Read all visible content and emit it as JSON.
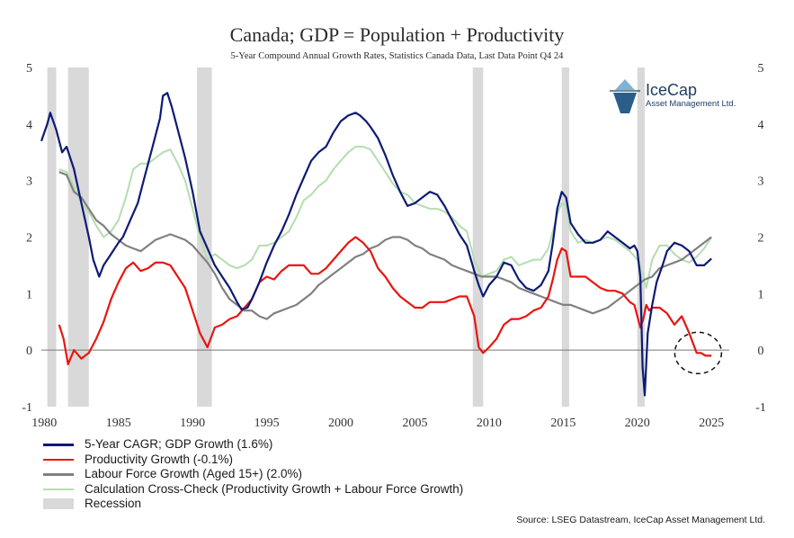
{
  "title": "Canada; GDP = Population + Productivity",
  "subtitle": "5-Year Compound Annual Growth Rates, Statistics Canada Data, Last Data Point Q4 24",
  "source": "Source: LSEG Datastream, IceCap Asset Management Ltd.",
  "logo": {
    "name": "IceCap",
    "tagline": "Asset Management Ltd."
  },
  "colors": {
    "gdp": "#0d1a75",
    "productivity": "#e8150f",
    "labour": "#808080",
    "crosscheck": "#b4ddb0",
    "recession": "#d9d9d9"
  },
  "chart_data": {
    "type": "line",
    "title": "Canada; GDP = Population + Productivity",
    "subtitle": "5-Year Compound Annual Growth Rates, Statistics Canada Data, Last Data Point Q4 24",
    "xlim": [
      1979.8,
      2026.2
    ],
    "ylim": [
      -1,
      5
    ],
    "x_ticks": [
      "1980",
      "1985",
      "1990",
      "1995",
      "2000",
      "2005",
      "2010",
      "2015",
      "2020",
      "2025"
    ],
    "y_ticks": [
      "-1",
      "0",
      "1",
      "2",
      "3",
      "4",
      "5"
    ],
    "grid": false,
    "secondary_y_axis": true,
    "legend": [
      {
        "key": "gdp",
        "label": "5-Year CAGR; GDP Growth (1.6%)",
        "style": "line"
      },
      {
        "key": "productivity",
        "label": "Productivity Growth (-0.1%)",
        "style": "line"
      },
      {
        "key": "labour",
        "label": "Labour Force Growth (Aged 15+) (2.0%)",
        "style": "line"
      },
      {
        "key": "crosscheck",
        "label": "Calculation Cross-Check (Productivity Growth + Labour Force Growth)",
        "style": "line"
      },
      {
        "key": "recession",
        "label": "Recession",
        "style": "box"
      }
    ],
    "legend_position": "bottom-left",
    "recessions": [
      [
        1980.2,
        1980.8
      ],
      [
        1981.6,
        1983.0
      ],
      [
        1990.3,
        1991.3
      ],
      [
        2008.9,
        2009.6
      ],
      [
        2014.9,
        2015.4
      ],
      [
        2020.0,
        2020.5
      ]
    ],
    "annotation": "dashed-circle around latest productivity values",
    "series": [
      {
        "key": "gdp",
        "name": "5-Year CAGR; GDP Growth (1.6%)",
        "x": [
          1979.8,
          1980.2,
          1980.4,
          1980.8,
          1981.2,
          1981.5,
          1982.0,
          1982.5,
          1983.0,
          1983.3,
          1983.7,
          1984.0,
          1984.5,
          1985.0,
          1985.3,
          1985.8,
          1986.3,
          1986.8,
          1987.3,
          1987.8,
          1988.0,
          1988.3,
          1988.6,
          1989.0,
          1989.5,
          1990.0,
          1990.5,
          1991.0,
          1991.5,
          1992.0,
          1992.5,
          1993.0,
          1993.3,
          1993.7,
          1994.0,
          1994.5,
          1995.0,
          1995.5,
          1996.0,
          1996.5,
          1997.0,
          1997.5,
          1998.0,
          1998.5,
          1999.0,
          1999.5,
          2000.0,
          2000.5,
          2001.0,
          2001.3,
          2001.7,
          2002.0,
          2002.5,
          2003.0,
          2003.5,
          2004.0,
          2004.5,
          2005.0,
          2005.5,
          2006.0,
          2006.5,
          2007.0,
          2007.5,
          2008.0,
          2008.5,
          2009.0,
          2009.3,
          2009.6,
          2010.0,
          2010.5,
          2011.0,
          2011.5,
          2012.0,
          2012.5,
          2013.0,
          2013.5,
          2014.0,
          2014.3,
          2014.6,
          2014.9,
          2015.2,
          2015.5,
          2016.0,
          2016.5,
          2017.0,
          2017.5,
          2018.0,
          2018.5,
          2019.0,
          2019.5,
          2019.8,
          2020.0,
          2020.2,
          2020.35,
          2020.5,
          2020.7,
          2021.0,
          2021.3,
          2021.7,
          2022.0,
          2022.5,
          2023.0,
          2023.5,
          2024.0,
          2024.5,
          2025.0
        ],
        "y": [
          3.7,
          4.0,
          4.2,
          3.9,
          3.5,
          3.6,
          3.2,
          2.6,
          2.0,
          1.6,
          1.3,
          1.5,
          1.7,
          1.9,
          2.0,
          2.3,
          2.6,
          3.1,
          3.6,
          4.1,
          4.5,
          4.55,
          4.3,
          3.9,
          3.4,
          2.8,
          2.1,
          1.8,
          1.5,
          1.3,
          1.1,
          0.85,
          0.72,
          0.75,
          0.9,
          1.2,
          1.55,
          1.85,
          2.1,
          2.4,
          2.75,
          3.05,
          3.35,
          3.5,
          3.6,
          3.85,
          4.05,
          4.15,
          4.2,
          4.15,
          4.05,
          3.95,
          3.75,
          3.45,
          3.1,
          2.8,
          2.55,
          2.6,
          2.7,
          2.8,
          2.75,
          2.55,
          2.3,
          2.05,
          1.85,
          1.4,
          1.15,
          0.95,
          1.15,
          1.3,
          1.55,
          1.5,
          1.25,
          1.1,
          1.05,
          1.15,
          1.4,
          1.9,
          2.5,
          2.8,
          2.7,
          2.25,
          2.05,
          1.9,
          1.9,
          1.95,
          2.1,
          2.0,
          1.9,
          1.8,
          1.85,
          1.75,
          1.3,
          -0.3,
          -0.8,
          0.3,
          0.8,
          1.2,
          1.5,
          1.75,
          1.9,
          1.85,
          1.75,
          1.5,
          1.5,
          1.62
        ]
      },
      {
        "key": "productivity",
        "name": "Productivity Growth (-0.1%)",
        "x": [
          1981.0,
          1981.3,
          1981.6,
          1982.0,
          1982.5,
          1983.0,
          1983.5,
          1984.0,
          1984.5,
          1985.0,
          1985.5,
          1986.0,
          1986.5,
          1987.0,
          1987.5,
          1988.0,
          1988.5,
          1989.0,
          1989.5,
          1990.0,
          1990.5,
          1991.0,
          1991.5,
          1992.0,
          1992.5,
          1993.0,
          1993.5,
          1994.0,
          1994.5,
          1995.0,
          1995.5,
          1996.0,
          1996.5,
          1997.0,
          1997.5,
          1998.0,
          1998.5,
          1999.0,
          1999.5,
          2000.0,
          2000.5,
          2001.0,
          2001.5,
          2002.0,
          2002.5,
          2003.0,
          2003.5,
          2004.0,
          2004.5,
          2005.0,
          2005.5,
          2006.0,
          2006.5,
          2007.0,
          2007.5,
          2008.0,
          2008.5,
          2009.0,
          2009.3,
          2009.6,
          2010.0,
          2010.5,
          2011.0,
          2011.5,
          2012.0,
          2012.5,
          2013.0,
          2013.5,
          2014.0,
          2014.3,
          2014.6,
          2014.9,
          2015.2,
          2015.5,
          2016.0,
          2016.5,
          2017.0,
          2017.5,
          2018.0,
          2018.5,
          2019.0,
          2019.5,
          2019.8,
          2020.0,
          2020.2,
          2020.4,
          2020.6,
          2020.8,
          2021.0,
          2021.5,
          2022.0,
          2022.5,
          2023.0,
          2023.5,
          2024.0,
          2024.3,
          2024.6,
          2025.0
        ],
        "y": [
          0.45,
          0.2,
          -0.25,
          0.0,
          -0.15,
          -0.05,
          0.2,
          0.5,
          0.9,
          1.2,
          1.45,
          1.55,
          1.4,
          1.45,
          1.55,
          1.55,
          1.5,
          1.3,
          1.1,
          0.7,
          0.3,
          0.05,
          0.4,
          0.45,
          0.55,
          0.6,
          0.75,
          0.9,
          1.2,
          1.3,
          1.25,
          1.4,
          1.5,
          1.5,
          1.5,
          1.35,
          1.35,
          1.45,
          1.6,
          1.75,
          1.9,
          2.0,
          1.9,
          1.75,
          1.45,
          1.3,
          1.1,
          0.95,
          0.85,
          0.75,
          0.75,
          0.85,
          0.85,
          0.85,
          0.9,
          0.95,
          0.95,
          0.6,
          0.05,
          -0.05,
          0.05,
          0.2,
          0.45,
          0.55,
          0.55,
          0.6,
          0.7,
          0.75,
          0.95,
          1.25,
          1.6,
          1.8,
          1.75,
          1.3,
          1.3,
          1.3,
          1.2,
          1.1,
          1.05,
          1.05,
          1.0,
          0.85,
          0.8,
          0.6,
          0.4,
          0.55,
          0.8,
          0.7,
          0.75,
          0.75,
          0.65,
          0.45,
          0.6,
          0.3,
          -0.05,
          -0.05,
          -0.1,
          -0.1
        ]
      },
      {
        "key": "labour",
        "name": "Labour Force Growth (Aged 15+) (2.0%)",
        "x": [
          1981.0,
          1981.5,
          1982.0,
          1982.5,
          1983.0,
          1983.5,
          1984.0,
          1984.5,
          1985.0,
          1985.5,
          1986.0,
          1986.5,
          1987.0,
          1987.5,
          1988.0,
          1988.5,
          1989.0,
          1989.5,
          1990.0,
          1990.5,
          1991.0,
          1991.5,
          1992.0,
          1992.5,
          1993.0,
          1993.5,
          1994.0,
          1994.5,
          1995.0,
          1995.5,
          1996.0,
          1996.5,
          1997.0,
          1997.5,
          1998.0,
          1998.5,
          1999.0,
          1999.5,
          2000.0,
          2000.5,
          2001.0,
          2001.5,
          2002.0,
          2002.5,
          2003.0,
          2003.5,
          2004.0,
          2004.5,
          2005.0,
          2005.5,
          2006.0,
          2006.5,
          2007.0,
          2007.5,
          2008.0,
          2008.5,
          2009.0,
          2009.5,
          2010.0,
          2010.5,
          2011.0,
          2011.5,
          2012.0,
          2012.5,
          2013.0,
          2013.5,
          2014.0,
          2014.5,
          2015.0,
          2015.5,
          2016.0,
          2016.5,
          2017.0,
          2017.5,
          2018.0,
          2018.5,
          2019.0,
          2019.5,
          2020.0,
          2020.5,
          2021.0,
          2021.5,
          2022.0,
          2022.5,
          2023.0,
          2023.5,
          2024.0,
          2024.5,
          2025.0
        ],
        "y": [
          3.15,
          3.1,
          2.8,
          2.7,
          2.5,
          2.3,
          2.2,
          2.05,
          1.95,
          1.85,
          1.8,
          1.75,
          1.85,
          1.95,
          2.0,
          2.05,
          2.0,
          1.95,
          1.85,
          1.7,
          1.55,
          1.35,
          1.1,
          0.9,
          0.8,
          0.7,
          0.7,
          0.6,
          0.55,
          0.65,
          0.7,
          0.75,
          0.8,
          0.9,
          1.0,
          1.15,
          1.25,
          1.35,
          1.45,
          1.55,
          1.65,
          1.7,
          1.8,
          1.85,
          1.95,
          2.0,
          2.0,
          1.95,
          1.85,
          1.8,
          1.7,
          1.65,
          1.6,
          1.5,
          1.45,
          1.4,
          1.35,
          1.3,
          1.3,
          1.3,
          1.25,
          1.2,
          1.1,
          1.05,
          1.0,
          0.95,
          0.9,
          0.85,
          0.8,
          0.8,
          0.75,
          0.7,
          0.65,
          0.7,
          0.75,
          0.85,
          0.95,
          1.05,
          1.15,
          1.25,
          1.3,
          1.45,
          1.5,
          1.55,
          1.6,
          1.7,
          1.8,
          1.9,
          2.0
        ]
      },
      {
        "key": "crosscheck",
        "name": "Calculation Cross-Check (Productivity Growth + Labour Force Growth)",
        "x": [
          1981.0,
          1981.5,
          1982.0,
          1982.5,
          1983.0,
          1983.5,
          1984.0,
          1984.5,
          1985.0,
          1985.5,
          1986.0,
          1986.5,
          1987.0,
          1987.5,
          1988.0,
          1988.5,
          1989.0,
          1989.5,
          1990.0,
          1990.5,
          1991.0,
          1991.5,
          1992.0,
          1992.5,
          1993.0,
          1993.5,
          1994.0,
          1994.5,
          1995.0,
          1995.5,
          1996.0,
          1996.5,
          1997.0,
          1997.5,
          1998.0,
          1998.5,
          1999.0,
          1999.5,
          2000.0,
          2000.5,
          2001.0,
          2001.5,
          2002.0,
          2002.5,
          2003.0,
          2003.5,
          2004.0,
          2004.5,
          2005.0,
          2005.5,
          2006.0,
          2006.5,
          2007.0,
          2007.5,
          2008.0,
          2008.5,
          2009.0,
          2009.5,
          2010.0,
          2010.5,
          2011.0,
          2011.5,
          2012.0,
          2012.5,
          2013.0,
          2013.5,
          2014.0,
          2014.3,
          2014.6,
          2014.9,
          2015.2,
          2015.5,
          2016.0,
          2016.5,
          2017.0,
          2017.5,
          2018.0,
          2018.5,
          2019.0,
          2019.5,
          2020.0,
          2020.3,
          2020.6,
          2021.0,
          2021.5,
          2022.0,
          2022.5,
          2023.0,
          2023.5,
          2024.0,
          2024.5,
          2025.0
        ],
        "y": [
          3.2,
          3.15,
          2.9,
          2.6,
          2.45,
          2.2,
          2.0,
          2.1,
          2.3,
          2.7,
          3.2,
          3.3,
          3.3,
          3.4,
          3.5,
          3.55,
          3.3,
          3.0,
          2.5,
          2.0,
          1.6,
          1.7,
          1.6,
          1.5,
          1.45,
          1.5,
          1.6,
          1.85,
          1.85,
          1.9,
          2.0,
          2.1,
          2.35,
          2.65,
          2.75,
          2.9,
          3.0,
          3.2,
          3.35,
          3.5,
          3.6,
          3.6,
          3.55,
          3.35,
          3.15,
          2.95,
          2.8,
          2.75,
          2.6,
          2.55,
          2.5,
          2.5,
          2.45,
          2.35,
          2.2,
          2.1,
          1.6,
          1.3,
          1.35,
          1.4,
          1.6,
          1.65,
          1.5,
          1.55,
          1.6,
          1.6,
          1.8,
          2.1,
          2.4,
          2.6,
          2.55,
          2.1,
          1.9,
          1.95,
          1.9,
          1.95,
          2.0,
          1.95,
          1.85,
          1.75,
          1.6,
          1.4,
          1.1,
          1.6,
          1.85,
          1.85,
          1.7,
          1.6,
          1.55,
          1.65,
          1.8,
          2.0
        ]
      }
    ]
  }
}
